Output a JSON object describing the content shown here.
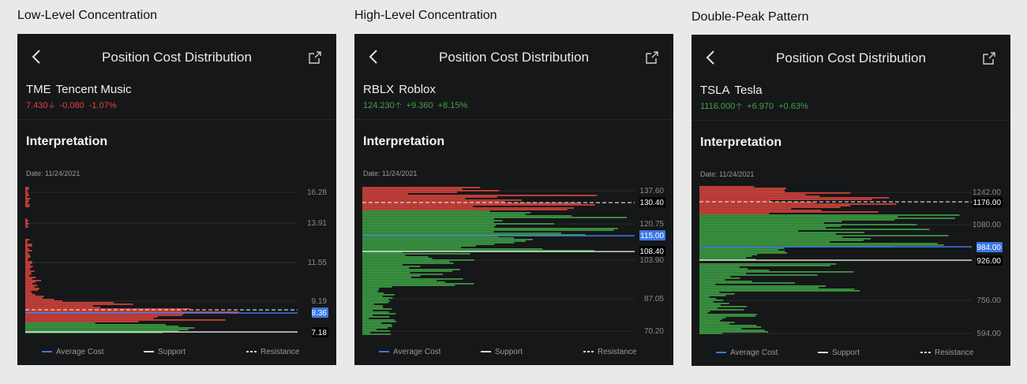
{
  "header": {
    "nav_title": "Position Cost Distribution",
    "interpretation": "Interpretation"
  },
  "legend": {
    "average": "Average Cost",
    "support": "Support",
    "resistance": "Resistance"
  },
  "colors": {
    "red": "#e0463d",
    "green": "#3fa646",
    "blue": "#3b78e7",
    "white": "#d8d8d8"
  },
  "panels": [
    {
      "caption": "Low-Level Concentration",
      "ticker": "TME",
      "company": "Tencent Music",
      "price": "7.430",
      "change": "-0.080",
      "pct": "-1.07%",
      "direction": "down",
      "date": "Date: 11/24/2021",
      "ticks": [
        "16.28",
        "13.91",
        "11.55",
        "9.19"
      ],
      "average_label": "8.36",
      "support_label": "7.18"
    },
    {
      "caption": "High-Level Concentration",
      "ticker": "RBLX",
      "company": "Roblox",
      "price": "124.230",
      "change": "+9.360",
      "pct": "+8.15%",
      "direction": "up",
      "date": "Date: 11/24/2021",
      "ticks": [
        "137.60",
        "120.75",
        "103.90",
        "87.05",
        "70.20"
      ],
      "resistance_label": "130.40",
      "average_label": "115.00",
      "support_label": "108.40"
    },
    {
      "caption": "Double-Peak Pattern",
      "ticker": "TSLA",
      "company": "Tesla",
      "price": "1116.000",
      "change": "+6.970",
      "pct": "+0.63%",
      "direction": "up",
      "date": "Date: 11/24/2021",
      "ticks": [
        "1242.00",
        "1080.00",
        "756.00",
        "594.00"
      ],
      "resistance_label": "1176.00",
      "average_label": "984.00",
      "support_label": "926.00"
    }
  ]
}
